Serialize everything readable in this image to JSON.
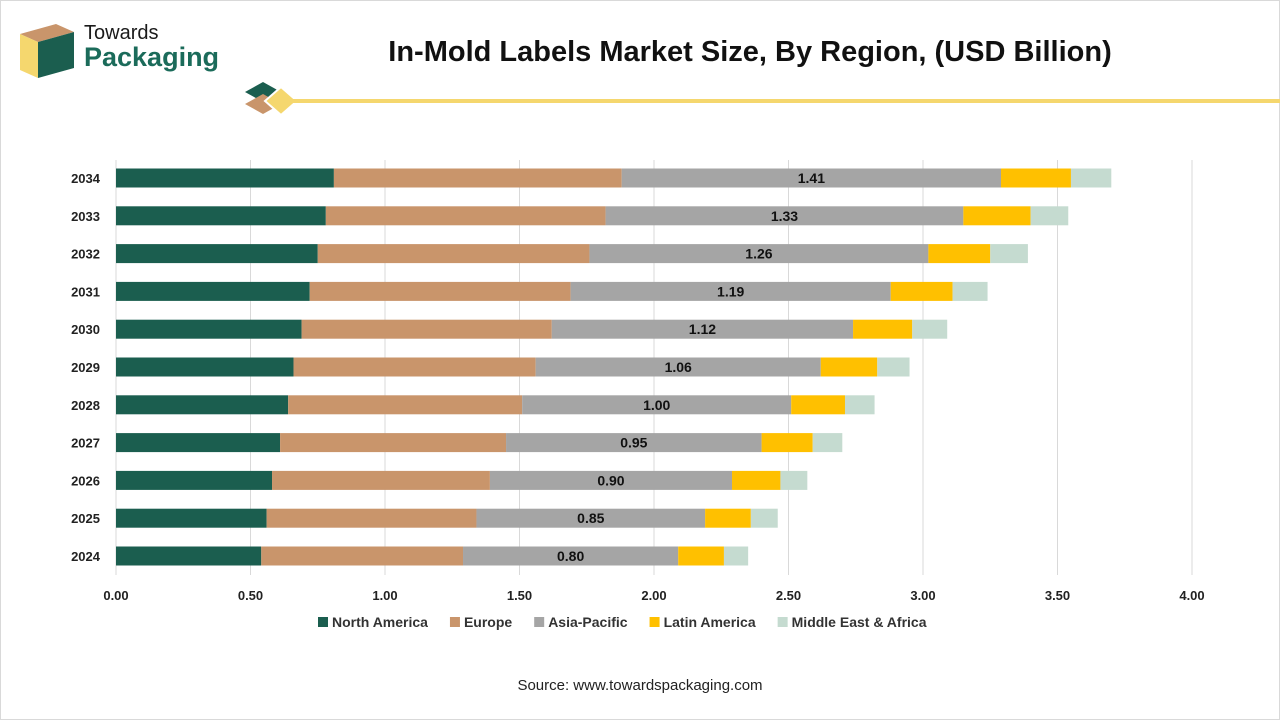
{
  "brand": {
    "line1": "Towards",
    "line2": "Packaging"
  },
  "title": "In-Mold Labels Market Size, By Region, (USD Billion)",
  "source": "Source: www.towardspackaging.com",
  "colors": {
    "North America": "#1b5e4f",
    "Europe": "#c9956b",
    "Asia-Pacific": "#a5a5a5",
    "Latin America": "#ffc000",
    "Middle East & Africa": "#c5dbd0",
    "accent": "#f5d76e"
  },
  "chart_data": {
    "type": "bar",
    "orientation": "horizontal",
    "stacked": true,
    "title": "In-Mold Labels Market Size, By Region, (USD Billion)",
    "categories": [
      "2024",
      "2025",
      "2026",
      "2027",
      "2028",
      "2029",
      "2030",
      "2031",
      "2032",
      "2033",
      "2034"
    ],
    "series": [
      {
        "name": "North America",
        "values": [
          0.54,
          0.56,
          0.58,
          0.61,
          0.64,
          0.66,
          0.69,
          0.72,
          0.75,
          0.78,
          0.81
        ]
      },
      {
        "name": "Europe",
        "values": [
          0.75,
          0.78,
          0.81,
          0.84,
          0.87,
          0.9,
          0.93,
          0.97,
          1.01,
          1.04,
          1.07
        ]
      },
      {
        "name": "Asia-Pacific",
        "values": [
          0.8,
          0.85,
          0.9,
          0.95,
          1.0,
          1.06,
          1.12,
          1.19,
          1.26,
          1.33,
          1.41
        ],
        "labels": [
          "0.80",
          "0.85",
          "0.90",
          "0.95",
          "1.00",
          "1.06",
          "1.12",
          "1.19",
          "1.26",
          "1.33",
          "1.41"
        ]
      },
      {
        "name": "Latin America",
        "values": [
          0.17,
          0.17,
          0.18,
          0.19,
          0.2,
          0.21,
          0.22,
          0.23,
          0.23,
          0.25,
          0.26
        ]
      },
      {
        "name": "Middle East & Africa",
        "values": [
          0.09,
          0.1,
          0.1,
          0.11,
          0.11,
          0.12,
          0.13,
          0.13,
          0.14,
          0.14,
          0.15
        ]
      }
    ],
    "xlim": [
      0,
      4
    ],
    "xticks": [
      "0.00",
      "0.50",
      "1.00",
      "1.50",
      "2.00",
      "2.50",
      "3.00",
      "3.50",
      "4.00"
    ],
    "xlabel": "",
    "ylabel": "",
    "grid": true,
    "legend": "bottom"
  }
}
